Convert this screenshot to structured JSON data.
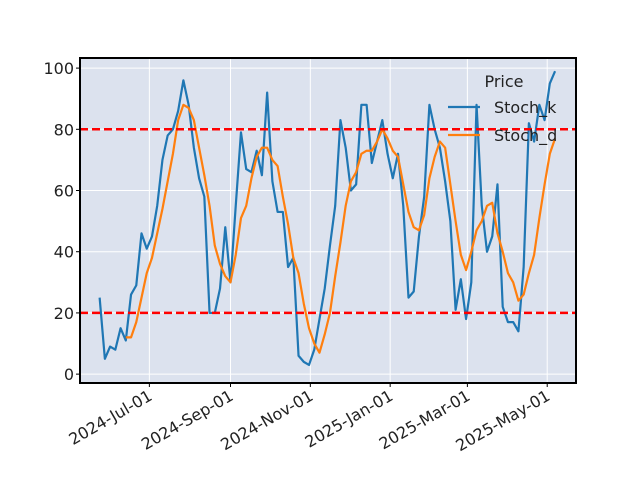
{
  "chart_data": {
    "type": "line",
    "x": [
      "2024-05-24",
      "2024-05-28",
      "2024-06-01",
      "2024-06-05",
      "2024-06-09",
      "2024-06-13",
      "2024-06-17",
      "2024-06-21",
      "2024-06-25",
      "2024-06-29",
      "2024-07-03",
      "2024-07-07",
      "2024-07-11",
      "2024-07-15",
      "2024-07-19",
      "2024-07-23",
      "2024-07-27",
      "2024-07-31",
      "2024-08-04",
      "2024-08-08",
      "2024-08-12",
      "2024-08-16",
      "2024-08-20",
      "2024-08-24",
      "2024-08-28",
      "2024-09-01",
      "2024-09-05",
      "2024-09-09",
      "2024-09-13",
      "2024-09-17",
      "2024-09-21",
      "2024-09-25",
      "2024-09-29",
      "2024-10-03",
      "2024-10-07",
      "2024-10-11",
      "2024-10-15",
      "2024-10-19",
      "2024-10-23",
      "2024-10-27",
      "2024-10-31",
      "2024-11-04",
      "2024-11-08",
      "2024-11-12",
      "2024-11-16",
      "2024-11-20",
      "2024-11-24",
      "2024-11-28",
      "2024-12-02",
      "2024-12-06",
      "2024-12-10",
      "2024-12-14",
      "2024-12-18",
      "2024-12-22",
      "2024-12-26",
      "2024-12-30",
      "2025-01-03",
      "2025-01-07",
      "2025-01-11",
      "2025-01-15",
      "2025-01-19",
      "2025-01-23",
      "2025-01-27",
      "2025-01-31",
      "2025-02-04",
      "2025-02-08",
      "2025-02-12",
      "2025-02-16",
      "2025-02-20",
      "2025-02-24",
      "2025-02-28",
      "2025-03-04",
      "2025-03-08",
      "2025-03-12",
      "2025-03-16",
      "2025-03-20",
      "2025-03-24",
      "2025-03-28",
      "2025-04-01",
      "2025-04-05",
      "2025-04-09",
      "2025-04-13",
      "2025-04-17",
      "2025-04-21",
      "2025-04-25",
      "2025-04-29",
      "2025-05-03",
      "2025-05-07"
    ],
    "series": [
      {
        "name": "Stoch_k",
        "color": "#1f77b4",
        "values": [
          25,
          5,
          9,
          8,
          15,
          11,
          26,
          29,
          46,
          41,
          45,
          55,
          70,
          78,
          80,
          86,
          96,
          88,
          74,
          64,
          58,
          20,
          20,
          28,
          48,
          30,
          55,
          79,
          67,
          66,
          73,
          65,
          92,
          63,
          53,
          53,
          35,
          38,
          6,
          4,
          3,
          8,
          18,
          28,
          42,
          55,
          83,
          74,
          60,
          62,
          88,
          88,
          69,
          76,
          83,
          72,
          64,
          72,
          55,
          25,
          27,
          45,
          58,
          88,
          80,
          74,
          63,
          50,
          21,
          31,
          18,
          30,
          88,
          55,
          40,
          45,
          62,
          22,
          17,
          17,
          14,
          35,
          82,
          76,
          88,
          83,
          95,
          99
        ]
      },
      {
        "name": "Stoch_d",
        "color": "#ff7f0e",
        "values": [
          null,
          null,
          null,
          null,
          null,
          12,
          12,
          17,
          25,
          33,
          38,
          46,
          54,
          63,
          72,
          83,
          88,
          87,
          83,
          74,
          65,
          55,
          42,
          36,
          32,
          30,
          39,
          51,
          55,
          64,
          71,
          74,
          74,
          70,
          68,
          58,
          49,
          38,
          33,
          23,
          15,
          10,
          7,
          13,
          20,
          32,
          43,
          55,
          63,
          66,
          72,
          73,
          73,
          76,
          80,
          77,
          73,
          71,
          62,
          53,
          48,
          47,
          52,
          64,
          71,
          76,
          74,
          62,
          50,
          39,
          34,
          40,
          47,
          50,
          55,
          56,
          46,
          40,
          33,
          30,
          24,
          26,
          33,
          39,
          51,
          62,
          72,
          77
        ]
      }
    ],
    "legend_title": "Price",
    "legend": "upper right",
    "hlines": [
      80,
      20
    ],
    "hline_color": "#ff0000",
    "xlim": [
      "2024-05-09",
      "2025-05-23"
    ],
    "xticks": [
      {
        "value": "2024-07-01",
        "label": "2024-Jul-01"
      },
      {
        "value": "2024-09-01",
        "label": "2024-Sep-01"
      },
      {
        "value": "2024-11-01",
        "label": "2024-Nov-01"
      },
      {
        "value": "2025-01-01",
        "label": "2025-Jan-01"
      },
      {
        "value": "2025-03-01",
        "label": "2025-Mar-01"
      },
      {
        "value": "2025-05-01",
        "label": "2025-May-01"
      }
    ],
    "ylim": [
      -2.9,
      103.3
    ],
    "yticks": [
      0,
      20,
      40,
      60,
      80,
      100
    ],
    "grid": true
  }
}
